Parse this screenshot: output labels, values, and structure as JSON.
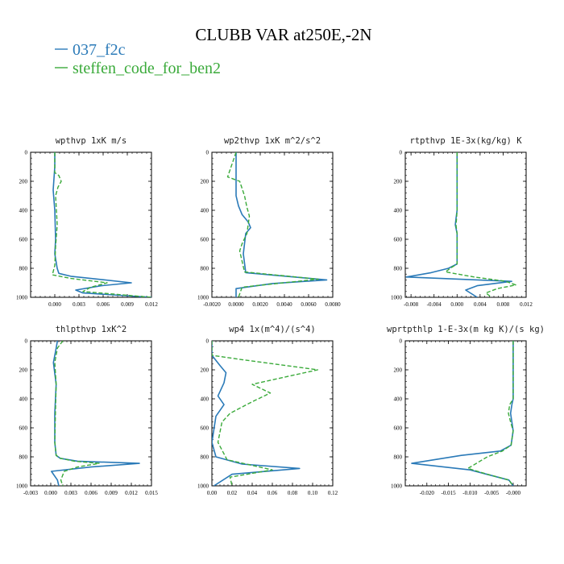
{
  "title": "CLUBB VAR at250E,-2N",
  "legend": [
    {
      "name": "037_f2c",
      "color": "#2a7ab8"
    },
    {
      "name": "steffen_code_for_ben2",
      "color": "#3aaa3a"
    }
  ],
  "chart_data": [
    {
      "type": "line",
      "title": "wpthvp  1xK m/s",
      "xlim": [
        -0.003,
        0.012
      ],
      "ylim": [
        1000,
        0
      ],
      "xticks": [
        "0.000",
        "0.003",
        "0.006",
        "0.009",
        "0.012"
      ],
      "xtick_values": [
        0,
        0.003,
        0.006,
        0.009,
        0.012
      ],
      "yticks": [
        "0",
        "200",
        "400",
        "600",
        "800",
        "1000"
      ],
      "series": [
        {
          "name": "037_f2c",
          "x": [
            0,
            0,
            -0.0001,
            -0.0002,
            0,
            0.0001,
            0,
            0.0003,
            0.0005,
            0.002,
            0.0095,
            0.0058,
            0.0026,
            0.0035,
            0.012
          ],
          "y": [
            0,
            100,
            180,
            260,
            400,
            600,
            700,
            800,
            835,
            855,
            900,
            920,
            950,
            970,
            1000
          ]
        },
        {
          "name": "steffen_code_for_ben2",
          "x": [
            0,
            0,
            0.0005,
            0.0008,
            0.0004,
            0.0001,
            0.0003,
            0.0001,
            0,
            -0.0003,
            0.002,
            0.0065,
            0.0045,
            0.0035,
            0.012
          ],
          "y": [
            0,
            140,
            160,
            200,
            240,
            300,
            500,
            650,
            780,
            845,
            870,
            900,
            930,
            960,
            1000
          ]
        }
      ]
    },
    {
      "type": "line",
      "title": "wp2thvp  1xK m^2/s^2",
      "xlim": [
        -0.002,
        0.008
      ],
      "ylim": [
        1000,
        0
      ],
      "xticks": [
        "-0.0020",
        "0.0000",
        "0.0020",
        "0.0040",
        "0.0060",
        "0.0080"
      ],
      "xtick_values": [
        -0.002,
        0,
        0.002,
        0.004,
        0.006,
        0.008
      ],
      "yticks": [
        "0",
        "200",
        "400",
        "600",
        "800",
        "1000"
      ],
      "series": [
        {
          "name": "037_f2c",
          "x": [
            0,
            0,
            0,
            0.0002,
            0.0005,
            0.001,
            0.0012,
            0.0008,
            0.0006,
            0.0008,
            0.0075,
            0.003,
            0,
            0
          ],
          "y": [
            0,
            100,
            300,
            370,
            430,
            480,
            520,
            560,
            700,
            830,
            880,
            905,
            940,
            1000
          ]
        },
        {
          "name": "steffen_code_for_ben2",
          "x": [
            0,
            -0.0007,
            0.0003,
            0.0005,
            0.0007,
            0.0009,
            0.0011,
            0.0009,
            0.0005,
            0.0003,
            0.0007,
            0.0068,
            0.0005,
            0.0002
          ],
          "y": [
            0,
            170,
            200,
            250,
            300,
            380,
            440,
            560,
            630,
            680,
            825,
            875,
            930,
            1000
          ]
        }
      ]
    },
    {
      "type": "line",
      "title": "rtpthvp  1E-3x(kg/kg) K",
      "xlim": [
        -0.009,
        0.012
      ],
      "ylim": [
        1000,
        0
      ],
      "xticks": [
        "-0.008",
        "-0.004",
        "0.000",
        "0.004",
        "0.008",
        "0.012"
      ],
      "xtick_values": [
        -0.008,
        -0.004,
        0,
        0.004,
        0.008,
        0.012
      ],
      "yticks": [
        "0",
        "200",
        "400",
        "600",
        "800",
        "1000"
      ],
      "series": [
        {
          "name": "037_f2c",
          "x": [
            0,
            0,
            -0.0002,
            -0.0003,
            0,
            0,
            -0.0015,
            -0.0045,
            -0.0088,
            0.0095,
            0.0035,
            0.0015,
            0.0035
          ],
          "y": [
            0,
            400,
            460,
            500,
            560,
            770,
            800,
            830,
            860,
            890,
            920,
            950,
            1000
          ]
        },
        {
          "name": "steffen_code_for_ben2",
          "x": [
            0,
            0,
            -0.0001,
            -0.0002,
            0,
            0,
            -0.0012,
            -0.002,
            0.003,
            0.0085,
            0.0102,
            0.007,
            0.005,
            0.006
          ],
          "y": [
            0,
            400,
            460,
            500,
            560,
            770,
            800,
            825,
            860,
            890,
            915,
            940,
            970,
            1000
          ]
        }
      ]
    },
    {
      "type": "line",
      "title": "thlpthvp  1xK^2",
      "xlim": [
        -0.003,
        0.015
      ],
      "ylim": [
        1000,
        0
      ],
      "xticks": [
        "-0.003",
        "0.000",
        "0.003",
        "0.006",
        "0.009",
        "0.012",
        "0.015"
      ],
      "xtick_values": [
        -0.003,
        0,
        0.003,
        0.006,
        0.009,
        0.012,
        0.015
      ],
      "yticks": [
        "0",
        "200",
        "400",
        "600",
        "800",
        "1000"
      ],
      "series": [
        {
          "name": "037_f2c",
          "x": [
            0.001,
            0.0008,
            0.0004,
            0.0008,
            0.0006,
            0.0006,
            0.0008,
            0.0014,
            0.004,
            0.0132,
            0.006,
            0.0001,
            0.001,
            0.0012
          ],
          "y": [
            0,
            50,
            150,
            300,
            500,
            700,
            790,
            810,
            830,
            845,
            870,
            900,
            960,
            1000
          ]
        },
        {
          "name": "steffen_code_for_ben2",
          "x": [
            0.0018,
            0.001,
            0.0006,
            0.0008,
            0.0007,
            0.0006,
            0.0008,
            0.0014,
            0.0035,
            0.0072,
            0.004,
            0.002,
            0.0015,
            0.0018
          ],
          "y": [
            0,
            50,
            150,
            300,
            500,
            700,
            790,
            810,
            830,
            845,
            870,
            900,
            960,
            1000
          ]
        }
      ]
    },
    {
      "type": "line",
      "title": "wp4  1x(m^4)/(s^4)",
      "xlim": [
        0,
        0.12
      ],
      "ylim": [
        1000,
        0
      ],
      "xticks": [
        "0.00",
        "0.02",
        "0.04",
        "0.06",
        "0.08",
        "0.10",
        "0.12"
      ],
      "xtick_values": [
        0,
        0.02,
        0.04,
        0.06,
        0.08,
        0.1,
        0.12
      ],
      "yticks": [
        "0",
        "200",
        "400",
        "600",
        "800",
        "1000"
      ],
      "series": [
        {
          "name": "037_f2c",
          "x": [
            0,
            0,
            0.008,
            0.014,
            0.012,
            0.006,
            0.012,
            0.004,
            0,
            0.004,
            0.03,
            0.087,
            0.02,
            0.002
          ],
          "y": [
            0,
            100,
            170,
            220,
            290,
            380,
            440,
            520,
            700,
            800,
            850,
            880,
            920,
            1000
          ]
        },
        {
          "name": "steffen_code_for_ben2",
          "x": [
            0,
            0,
            0.03,
            0.105,
            0.04,
            0.058,
            0.04,
            0.018,
            0.01,
            0.006,
            0.015,
            0.06,
            0.018,
            0.02
          ],
          "y": [
            0,
            100,
            130,
            200,
            300,
            360,
            420,
            500,
            560,
            700,
            820,
            890,
            940,
            1000
          ]
        }
      ]
    },
    {
      "type": "line",
      "title": "wprtpthlp  1-E-3x(m kg K)/(s kg)",
      "xlim": [
        -0.025,
        0.003
      ],
      "ylim": [
        1000,
        0
      ],
      "xticks": [
        "-0.020",
        "-0.015",
        "-0.010",
        "-0.005",
        "-0.000"
      ],
      "xtick_values": [
        -0.02,
        -0.015,
        -0.01,
        -0.005,
        0
      ],
      "yticks": [
        "0",
        "200",
        "400",
        "600",
        "800",
        "1000"
      ],
      "series": [
        {
          "name": "037_f2c",
          "x": [
            0,
            0,
            -0.0003,
            -0.0006,
            -0.0003,
            0,
            -0.0005,
            -0.003,
            -0.012,
            -0.0235,
            -0.01,
            -0.001,
            0
          ],
          "y": [
            0,
            400,
            440,
            500,
            560,
            620,
            720,
            760,
            790,
            845,
            890,
            960,
            1000
          ]
        },
        {
          "name": "steffen_code_for_ben2",
          "x": [
            0,
            0,
            -0.0008,
            -0.0011,
            -0.0006,
            0,
            -0.0005,
            -0.0025,
            -0.006,
            -0.0105,
            -0.006,
            -0.001,
            0
          ],
          "y": [
            0,
            400,
            440,
            500,
            560,
            620,
            720,
            760,
            800,
            880,
            920,
            960,
            1000
          ]
        }
      ]
    }
  ]
}
